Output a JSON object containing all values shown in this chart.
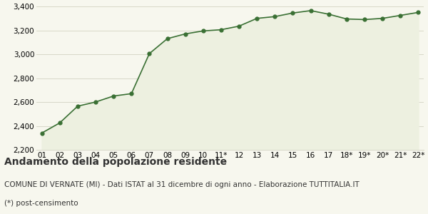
{
  "x_labels": [
    "01",
    "02",
    "03",
    "04",
    "05",
    "06",
    "07",
    "08",
    "09",
    "10",
    "11*",
    "12",
    "13",
    "14",
    "15",
    "16",
    "17",
    "18*",
    "19*",
    "20*",
    "21*",
    "22*"
  ],
  "y_values": [
    2340,
    2425,
    2565,
    2600,
    2650,
    2670,
    3005,
    3130,
    3170,
    3195,
    3205,
    3235,
    3300,
    3315,
    3345,
    3365,
    3335,
    3295,
    3290,
    3300,
    3325,
    3350
  ],
  "line_color": "#3a7034",
  "fill_color": "#edf0e0",
  "marker_color": "#3a7034",
  "bg_color": "#f7f7ee",
  "grid_color": "#d8d8c8",
  "ylim": [
    2200,
    3400
  ],
  "yticks": [
    2200,
    2400,
    2600,
    2800,
    3000,
    3200,
    3400
  ],
  "title": "Andamento della popolazione residente",
  "subtitle": "COMUNE DI VERNATE (MI) - Dati ISTAT al 31 dicembre di ogni anno - Elaborazione TUTTITALIA.IT",
  "footnote": "(*) post-censimento",
  "title_fontsize": 10,
  "subtitle_fontsize": 7.5,
  "footnote_fontsize": 7.5,
  "tick_fontsize": 7.5
}
